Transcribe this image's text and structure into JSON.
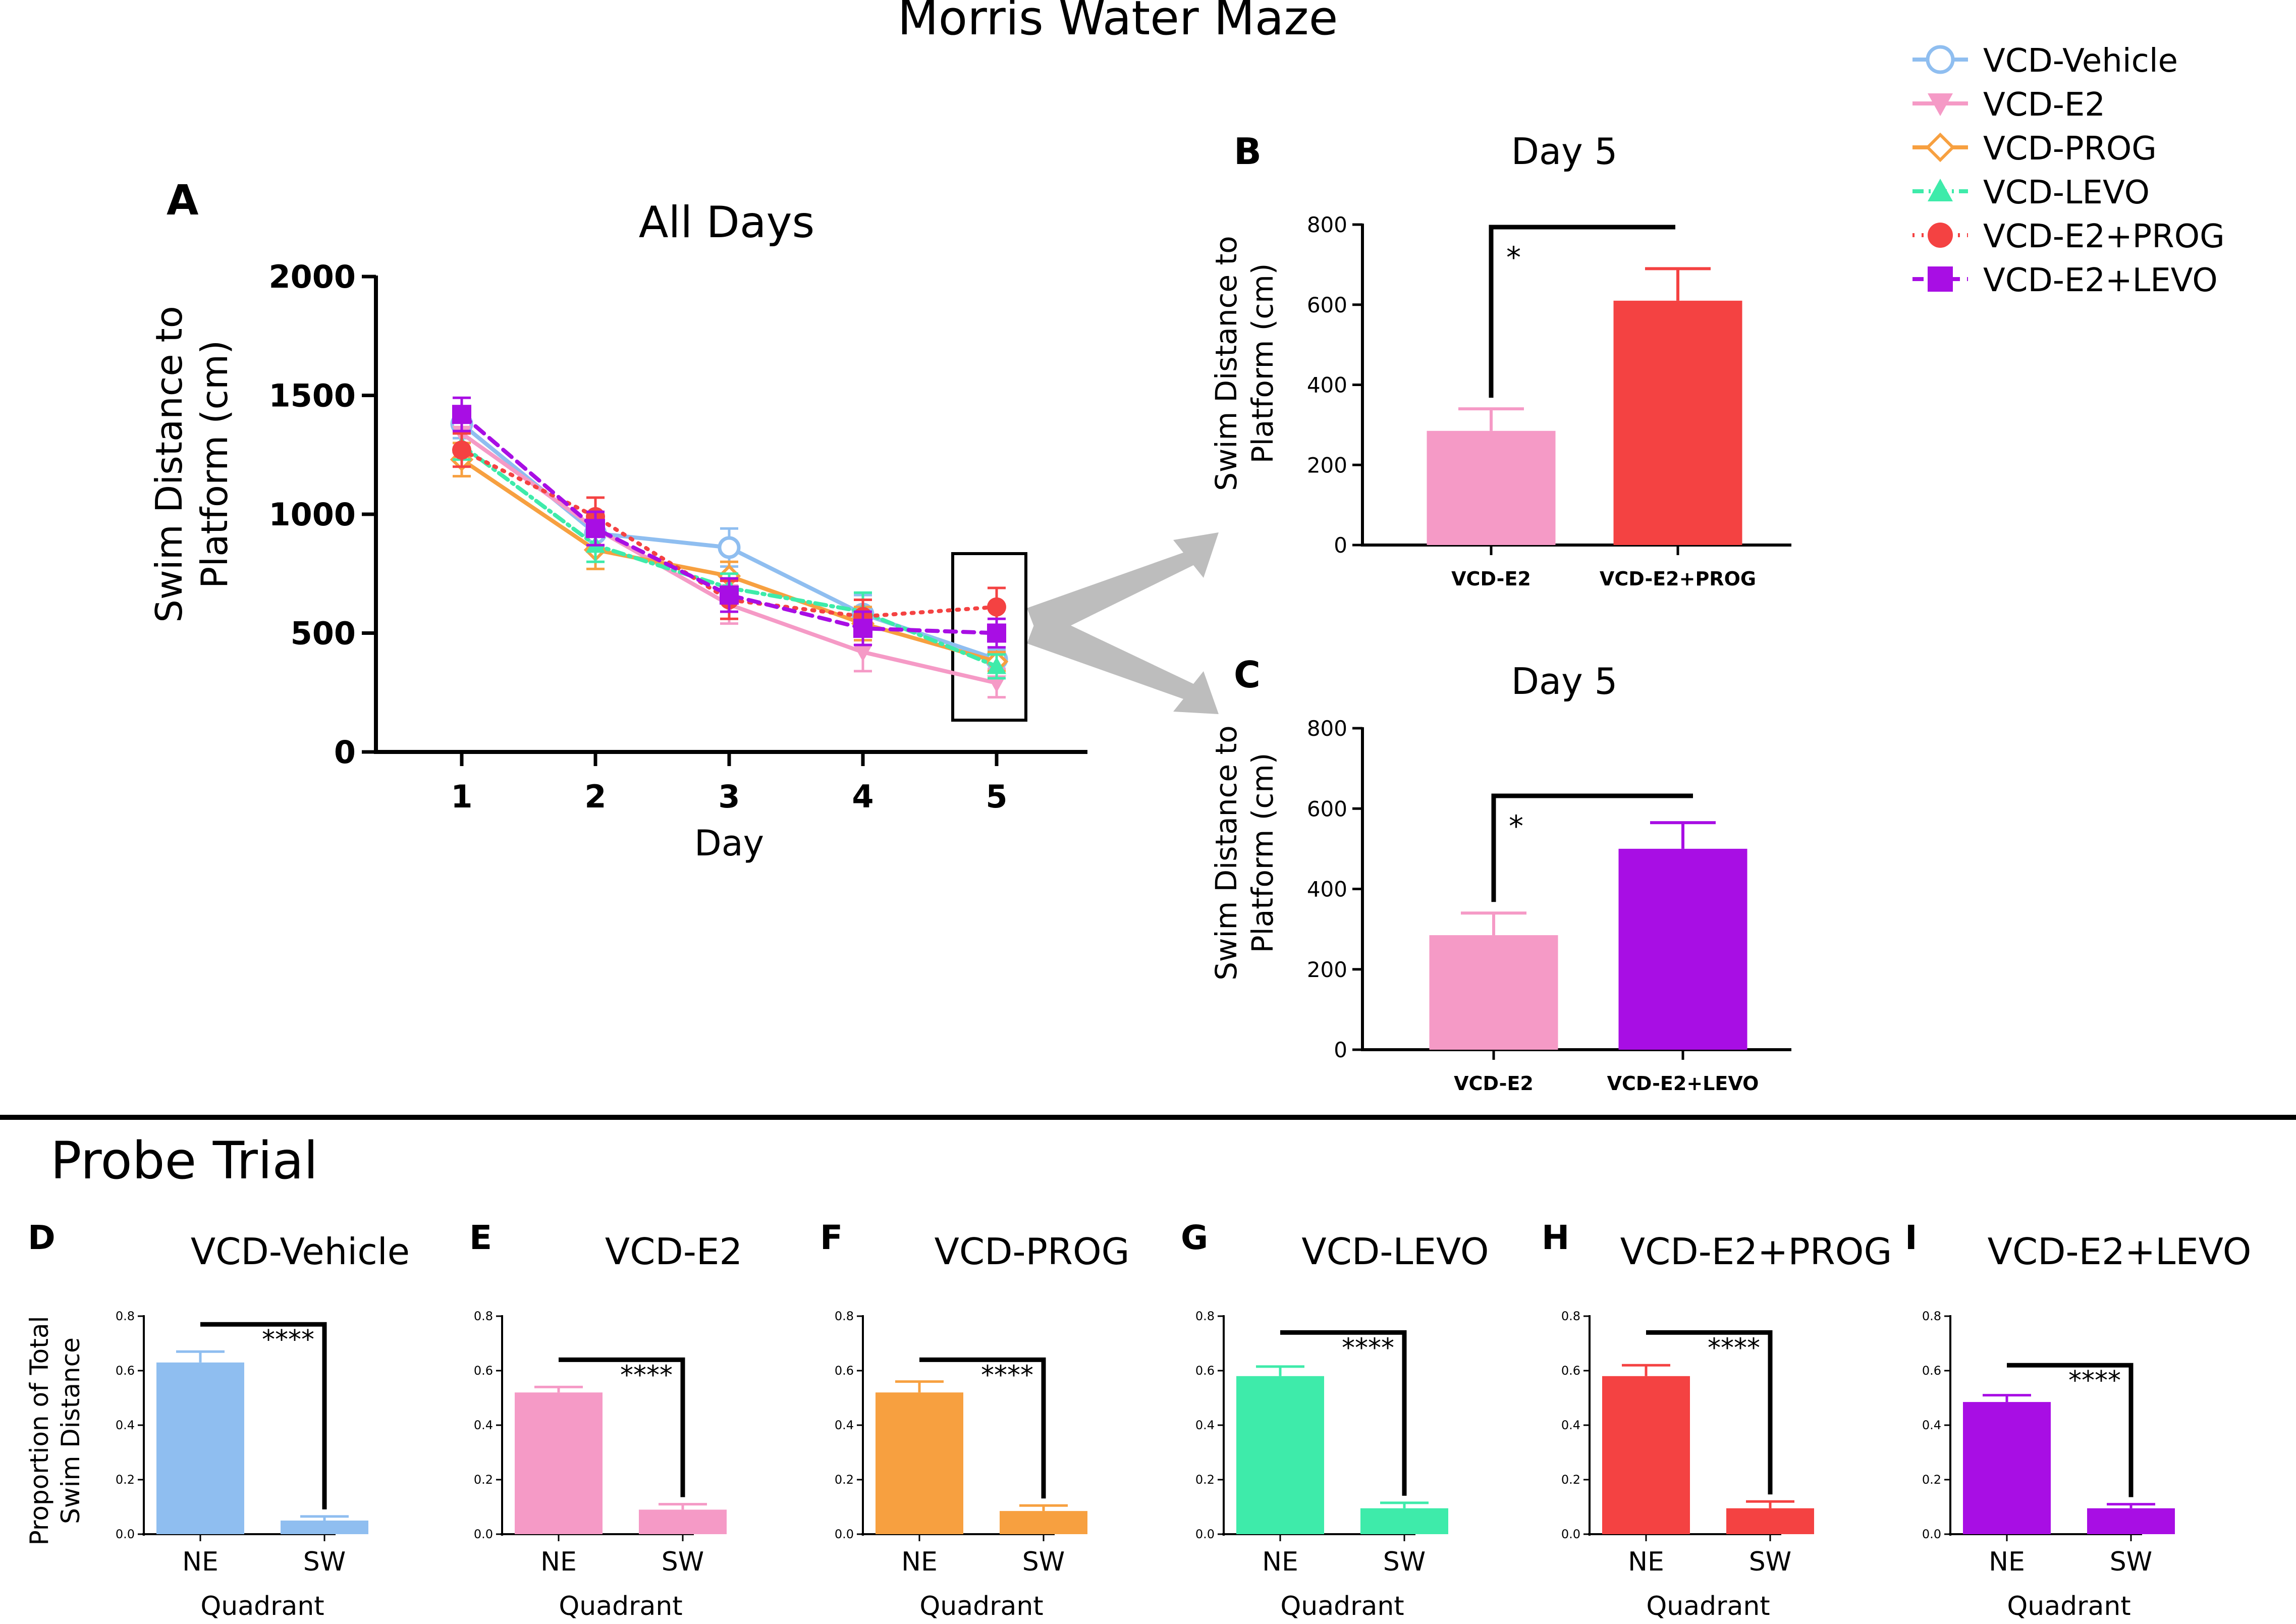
{
  "figure": {
    "title": "Morris Water Maze",
    "section_title": "Probe Trial",
    "arrow_color": "#bdbdbd"
  },
  "groups": [
    {
      "name": "VCD-Vehicle",
      "color": "#8fbef0",
      "marker": "open-circle",
      "dash": "solid"
    },
    {
      "name": "VCD-E2",
      "color": "#f59ac6",
      "marker": "down-triangle",
      "dash": "solid"
    },
    {
      "name": "VCD-PROG",
      "color": "#f7a040",
      "marker": "open-diamond",
      "dash": "solid"
    },
    {
      "name": "VCD-LEVO",
      "color": "#3eebaa",
      "marker": "up-triangle",
      "dash": "dashdot"
    },
    {
      "name": "VCD-E2+PROG",
      "color": "#f44242",
      "marker": "filled-circle",
      "dash": "dotted"
    },
    {
      "name": "VCD-E2+LEVO",
      "color": "#a80ee4",
      "marker": "filled-square",
      "dash": "dashed"
    }
  ],
  "chart_data": [
    {
      "panel": "A",
      "type": "line",
      "title": "All Days",
      "xlabel": "Day",
      "ylabel": [
        "Swim Distance to",
        "Platform (cm)"
      ],
      "x": [
        1,
        2,
        3,
        4,
        5
      ],
      "ylim": [
        0,
        2000
      ],
      "yticks": [
        0,
        500,
        1000,
        1500,
        2000
      ],
      "highlight_day": 5,
      "series": [
        {
          "name": "VCD-Vehicle",
          "values": [
            1380,
            920,
            860,
            580,
            390
          ],
          "errors": [
            60,
            60,
            80,
            80,
            40
          ]
        },
        {
          "name": "VCD-E2",
          "values": [
            1340,
            940,
            620,
            420,
            290
          ],
          "errors": [
            60,
            70,
            80,
            80,
            60
          ]
        },
        {
          "name": "VCD-PROG",
          "values": [
            1230,
            850,
            740,
            540,
            380
          ],
          "errors": [
            70,
            80,
            60,
            70,
            40
          ]
        },
        {
          "name": "VCD-LEVO",
          "values": [
            1290,
            870,
            690,
            590,
            360
          ],
          "errors": [
            60,
            70,
            60,
            80,
            50
          ]
        },
        {
          "name": "VCD-E2+PROG",
          "values": [
            1270,
            990,
            640,
            570,
            610
          ],
          "errors": [
            70,
            80,
            80,
            70,
            80
          ]
        },
        {
          "name": "VCD-E2+LEVO",
          "values": [
            1420,
            940,
            660,
            520,
            500
          ],
          "errors": [
            70,
            70,
            70,
            70,
            60
          ]
        }
      ]
    },
    {
      "panel": "B",
      "type": "bar",
      "title": "Day 5",
      "ylabel": [
        "Swim Distance to",
        "Platform (cm)"
      ],
      "categories": [
        "VCD-E2",
        "VCD-E2+PROG"
      ],
      "values": [
        285,
        610
      ],
      "errors": [
        55,
        80
      ],
      "colors": [
        "#f59ac6",
        "#f44242"
      ],
      "ylim": [
        0,
        800
      ],
      "yticks": [
        0,
        200,
        400,
        600,
        800
      ],
      "significance": "*"
    },
    {
      "panel": "C",
      "type": "bar",
      "title": "Day 5",
      "ylabel": [
        "Swim Distance to",
        "Platform (cm)"
      ],
      "categories": [
        "VCD-E2",
        "VCD-E2+LEVO"
      ],
      "values": [
        285,
        500
      ],
      "errors": [
        55,
        65
      ],
      "colors": [
        "#f59ac6",
        "#a80ee4"
      ],
      "ylim": [
        0,
        800
      ],
      "yticks": [
        0,
        200,
        400,
        600,
        800
      ],
      "significance": "*"
    },
    {
      "panel": "D",
      "type": "bar",
      "title": "VCD-Vehicle",
      "xlabel": "Quadrant",
      "ylabel": [
        "Proportion of Total",
        "Swim Distance"
      ],
      "categories": [
        "NE",
        "SW"
      ],
      "values": [
        0.63,
        0.05
      ],
      "errors": [
        0.04,
        0.015
      ],
      "color": "#8fbef0",
      "ylim": [
        0,
        0.8
      ],
      "yticks": [
        "0.0",
        "0.2",
        "0.4",
        "0.6",
        "0.8"
      ],
      "significance": "****"
    },
    {
      "panel": "E",
      "type": "bar",
      "title": "VCD-E2",
      "xlabel": "Quadrant",
      "categories": [
        "NE",
        "SW"
      ],
      "values": [
        0.52,
        0.09
      ],
      "errors": [
        0.02,
        0.02
      ],
      "color": "#f59ac6",
      "ylim": [
        0,
        0.8
      ],
      "yticks": [
        "0.0",
        "0.2",
        "0.4",
        "0.6",
        "0.8"
      ],
      "significance": "****"
    },
    {
      "panel": "F",
      "type": "bar",
      "title": "VCD-PROG",
      "xlabel": "Quadrant",
      "categories": [
        "NE",
        "SW"
      ],
      "values": [
        0.52,
        0.085
      ],
      "errors": [
        0.04,
        0.02
      ],
      "color": "#f7a040",
      "ylim": [
        0,
        0.8
      ],
      "yticks": [
        "0.0",
        "0.2",
        "0.4",
        "0.6",
        "0.8"
      ],
      "significance": "****"
    },
    {
      "panel": "G",
      "type": "bar",
      "title": "VCD-LEVO",
      "xlabel": "Quadrant",
      "categories": [
        "NE",
        "SW"
      ],
      "values": [
        0.58,
        0.095
      ],
      "errors": [
        0.035,
        0.02
      ],
      "color": "#3eebaa",
      "ylim": [
        0,
        0.8
      ],
      "yticks": [
        "0.0",
        "0.2",
        "0.4",
        "0.6",
        "0.8"
      ],
      "significance": "****"
    },
    {
      "panel": "H",
      "type": "bar",
      "title": "VCD-E2+PROG",
      "xlabel": "Quadrant",
      "categories": [
        "NE",
        "SW"
      ],
      "values": [
        0.58,
        0.095
      ],
      "errors": [
        0.04,
        0.025
      ],
      "color": "#f44242",
      "ylim": [
        0,
        0.8
      ],
      "yticks": [
        "0.0",
        "0.2",
        "0.4",
        "0.6",
        "0.8"
      ],
      "significance": "****"
    },
    {
      "panel": "I",
      "type": "bar",
      "title": "VCD-E2+LEVO",
      "xlabel": "Quadrant",
      "categories": [
        "NE",
        "SW"
      ],
      "values": [
        0.485,
        0.095
      ],
      "errors": [
        0.025,
        0.015
      ],
      "color": "#a80ee4",
      "ylim": [
        0,
        0.8
      ],
      "yticks": [
        "0.0",
        "0.2",
        "0.4",
        "0.6",
        "0.8"
      ],
      "significance": "****"
    }
  ]
}
